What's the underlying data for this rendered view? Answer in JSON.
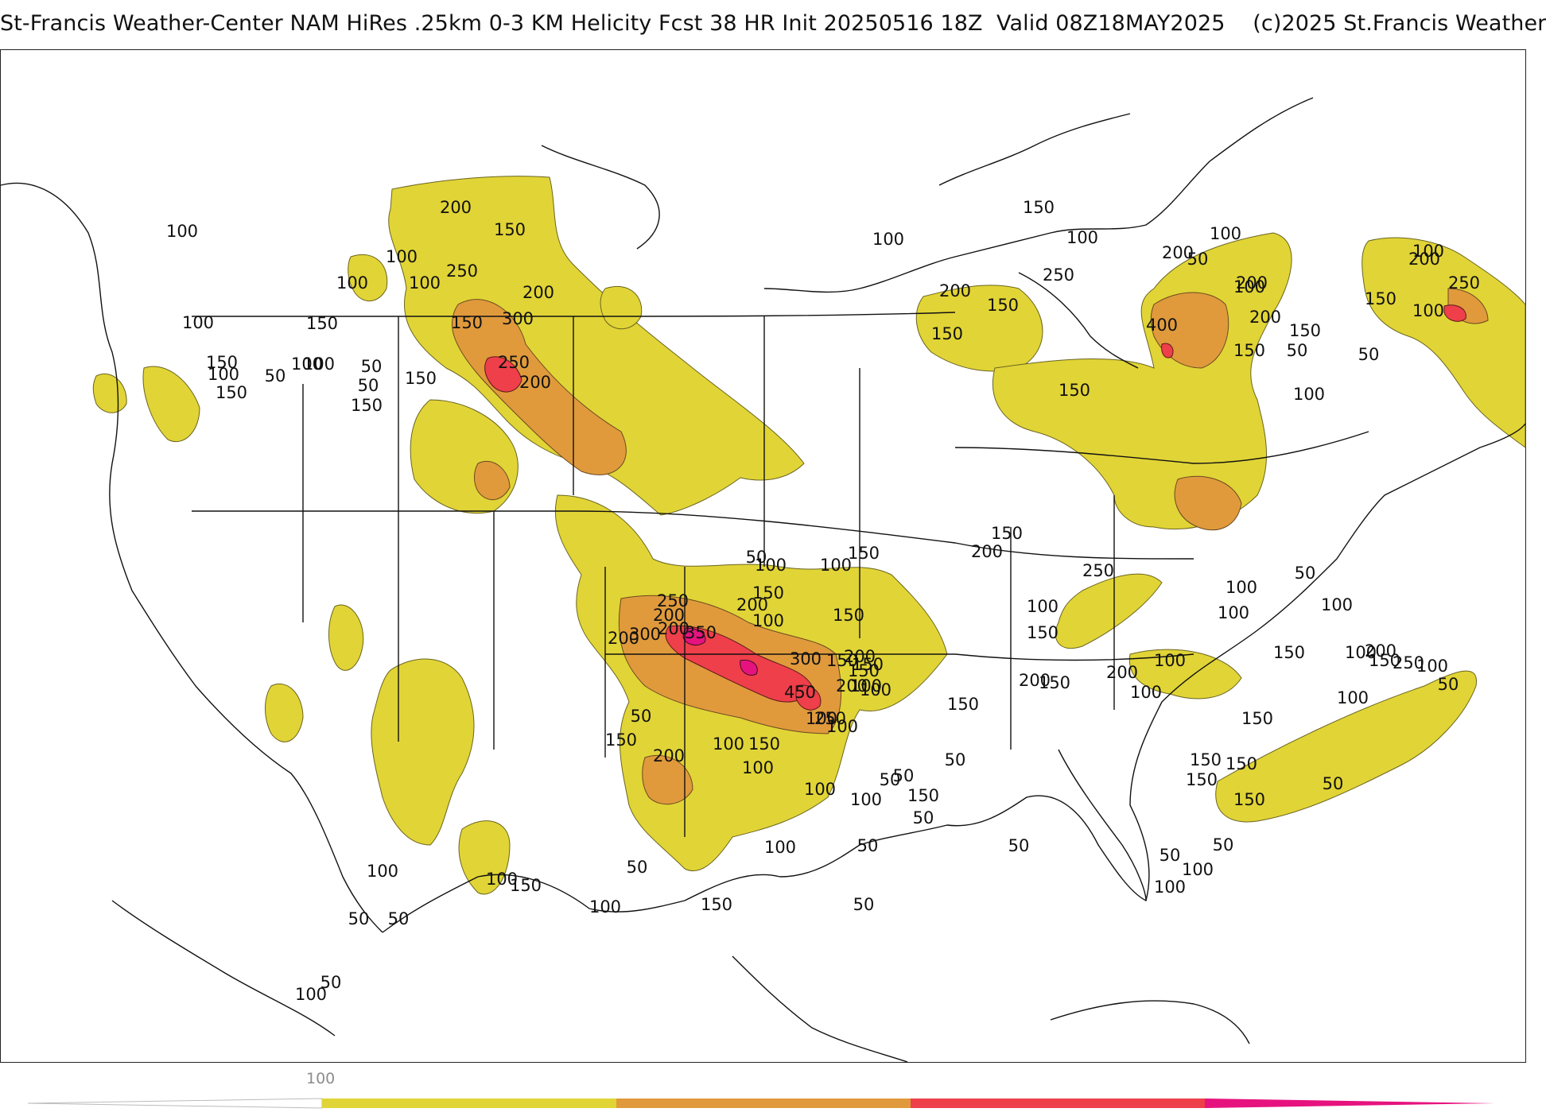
{
  "title": "St-Francis Weather-Center NAM HiRes .25km 0-3 KM Helicity Fcst 38 HR Init 20250516 18Z  Valid 08Z18MAY2025    (c)2025 St.Francis Weather",
  "colors": {
    "level_100": "#e1d436",
    "level_200": "#e09a3c",
    "level_300": "#ee3f4a",
    "level_400": "#e6137f",
    "outline": "#111111",
    "county_lines": "#b5b5b5"
  },
  "colorbar": {
    "tick_label": "100",
    "levels": [
      0,
      100,
      200,
      300,
      400
    ],
    "colors": [
      "#ffffff",
      "#e1d436",
      "#e09a3c",
      "#ee3f4a",
      "#e6137f"
    ]
  },
  "contour_labels": [
    "200",
    "150",
    "100",
    "100",
    "150",
    "100",
    "250",
    "200",
    "300",
    "150",
    "100",
    "100",
    "100",
    "150",
    "100",
    "150",
    "100",
    "50",
    "50",
    "150",
    "250",
    "200",
    "100",
    "50",
    "150",
    "150",
    "100",
    "100",
    "200",
    "400",
    "200",
    "250",
    "50",
    "100",
    "200",
    "150",
    "150",
    "150",
    "200",
    "150",
    "50",
    "150",
    "100",
    "50",
    "100",
    "250",
    "200",
    "150",
    "100",
    "300",
    "350",
    "300",
    "450",
    "200",
    "250",
    "200",
    "100",
    "150",
    "150",
    "200",
    "250",
    "150",
    "200",
    "100",
    "200",
    "200",
    "150",
    "150",
    "100",
    "50",
    "100",
    "50",
    "150",
    "200",
    "100",
    "150",
    "100",
    "100",
    "100",
    "50",
    "100",
    "150",
    "50",
    "50",
    "150",
    "100",
    "200",
    "150",
    "250",
    "100",
    "150",
    "200",
    "150",
    "100",
    "150",
    "150",
    "150",
    "100",
    "200",
    "250",
    "150",
    "200",
    "100",
    "50",
    "100",
    "100",
    "100",
    "150",
    "100",
    "50",
    "100",
    "150",
    "50",
    "150",
    "50",
    "100",
    "50",
    "100",
    "50",
    "50",
    "50",
    "100",
    "150",
    "100",
    "50",
    "150",
    "100",
    "150",
    "100",
    "100",
    "50",
    "50",
    "50",
    "100",
    "50"
  ]
}
